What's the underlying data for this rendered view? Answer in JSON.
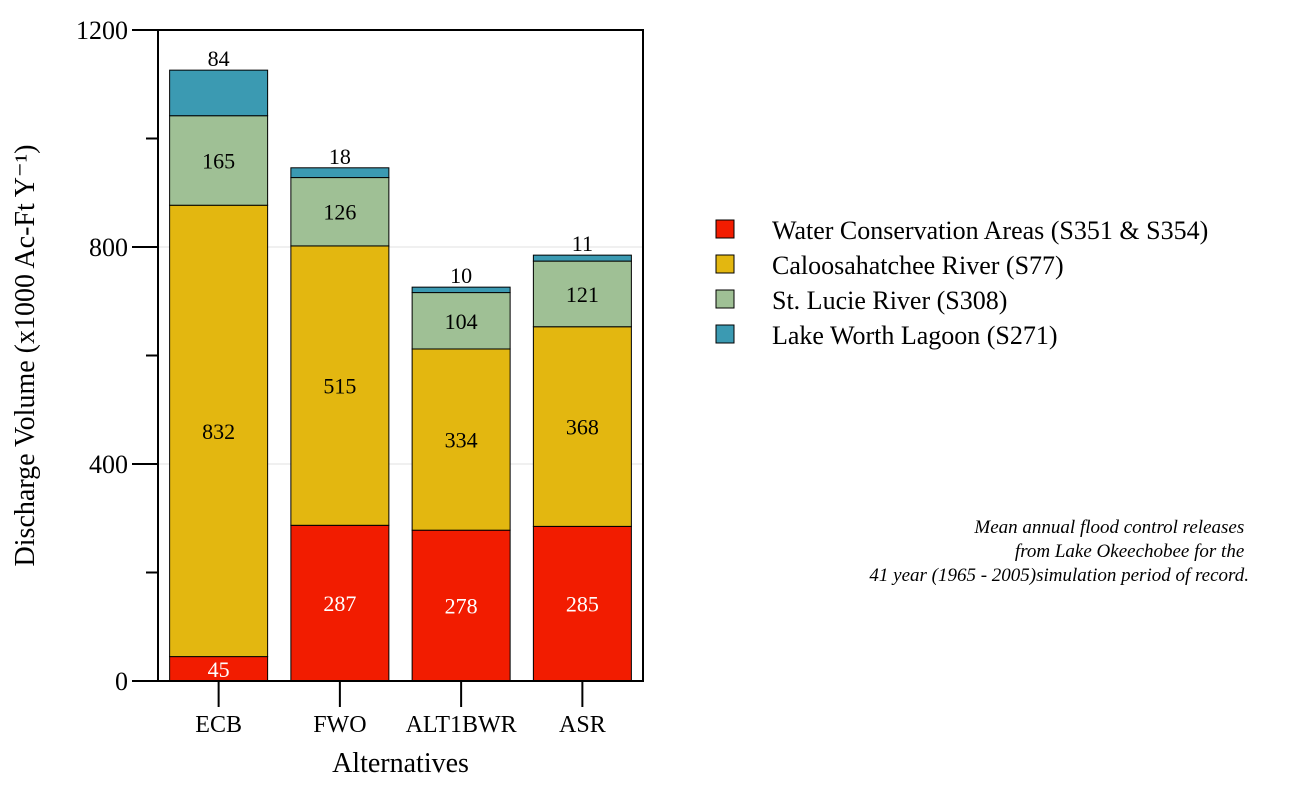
{
  "chart_data": {
    "type": "bar",
    "stacked": true,
    "categories": [
      "ECB",
      "FWO",
      "ALT1BWR",
      "ASR"
    ],
    "series": [
      {
        "name": "Water Conservation Areas (S351 & S354)",
        "color": "#f21c00",
        "label_color": "#ffffff",
        "values": [
          45,
          287,
          278,
          285
        ]
      },
      {
        "name": "Caloosahatchee River (S77)",
        "color": "#e3b710",
        "label_color": "#000000",
        "values": [
          832,
          515,
          334,
          368
        ]
      },
      {
        "name": "St. Lucie River (S308)",
        "color": "#9fc095",
        "label_color": "#000000",
        "values": [
          165,
          126,
          104,
          121
        ]
      },
      {
        "name": "Lake Worth Lagoon (S271)",
        "color": "#3b9ab2",
        "label_color": "#000000",
        "values": [
          84,
          18,
          10,
          11
        ]
      }
    ],
    "xlabel": "Alternatives",
    "ylabel": "Discharge Volume (x1000 Ac-Ft Y⁻¹)",
    "ylim": [
      0,
      1200
    ],
    "yticks_labeled": [
      0,
      400,
      800,
      1200
    ],
    "yticks_minor": [
      200,
      600,
      1000
    ],
    "gridlines": [
      400,
      800
    ],
    "legend_position": "right",
    "annotation": [
      "Mean annual flood control releases",
      "from Lake Okeechobee for the",
      "41 year (1965 - 2005)simulation period of record."
    ]
  }
}
